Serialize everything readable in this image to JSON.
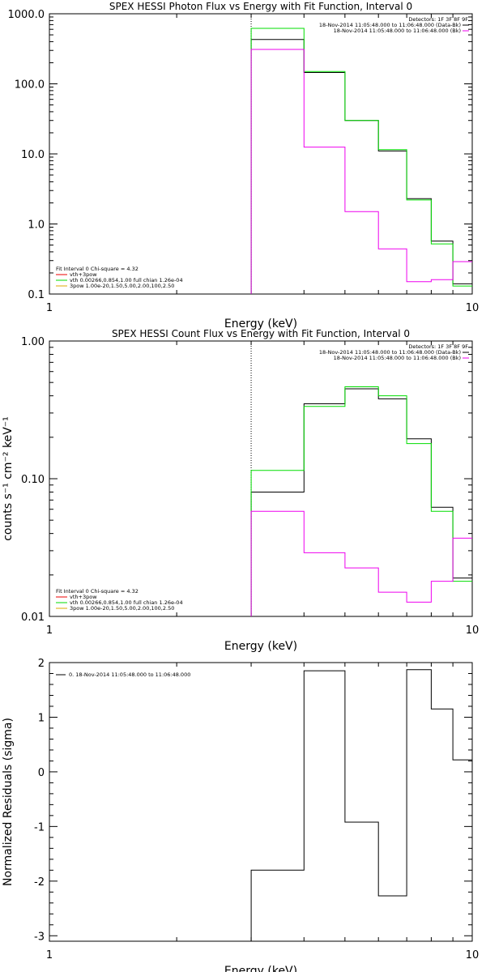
{
  "chart_data": [
    {
      "type": "line",
      "title": "SPEX HESSI Photon Flux vs Energy with Fit Function, Interval 0",
      "xlabel": "Energy (keV)",
      "ylabel": "",
      "xlog": true,
      "ylog": true,
      "xlim": [
        1,
        10
      ],
      "ylim": [
        0.1,
        1000
      ],
      "x_ticks": [
        {
          "v": 1,
          "label": "1"
        },
        {
          "v": 10,
          "label": "10"
        }
      ],
      "y_ticks": [
        {
          "v": 1000,
          "label": "1000.0"
        },
        {
          "v": 100,
          "label": "100.0"
        },
        {
          "v": 10,
          "label": "10.0"
        },
        {
          "v": 1,
          "label": "1.0"
        },
        {
          "v": 0.1,
          "label": "0.1"
        }
      ],
      "vline_x": 3.0,
      "bin_edges": [
        3.0,
        4.0,
        5.0,
        6.0,
        7.0,
        8.0,
        9.0,
        10.0
      ],
      "series": [
        {
          "color": "#000000",
          "values": [
            430,
            145,
            30,
            11,
            2.3,
            0.57,
            0.14
          ]
        },
        {
          "color": "#00dd00",
          "values": [
            620,
            150,
            30,
            11.5,
            2.2,
            0.52,
            0.13
          ]
        },
        {
          "color": "#ee00ee",
          "values": [
            310,
            12.5,
            1.5,
            0.44,
            0.15,
            0.16,
            0.29
          ]
        }
      ],
      "legend_tr": {
        "color": "#000000",
        "lines": [
          {
            "text": "Detectors: 1F 3F 8F 9F",
            "mark": ""
          },
          {
            "text": "18-Nov-2014 11:05:48.000 to 11:06:48.000 (Data-Bk)",
            "mark": "#000000"
          },
          {
            "text": "18-Nov-2014 11:05:48.000 to 11:06:48.000 (Bk)",
            "mark": "#ee00ee"
          }
        ]
      },
      "legend_bl": [
        {
          "text": "Fit Interval  0   Chi-square = 4.32",
          "color": ""
        },
        {
          "text": "vth+3pow",
          "color": "#ee0000"
        },
        {
          "text": "vth 0.00266,0.854,1.00  full chian 1.26e-04",
          "color": "#00dd00"
        },
        {
          "text": "3pow 1.00e-20,1.50,5.00,2.00,100,2.50",
          "color": "#ddaa00"
        }
      ]
    },
    {
      "type": "line",
      "title": "SPEX HESSI Count Flux vs Energy with Fit Function, Interval 0",
      "xlabel": "Energy (keV)",
      "ylabel": "counts s⁻¹ cm⁻² keV⁻¹",
      "xlog": true,
      "ylog": true,
      "xlim": [
        1,
        10
      ],
      "ylim": [
        0.01,
        1.0
      ],
      "x_ticks": [
        {
          "v": 1,
          "label": "1"
        },
        {
          "v": 10,
          "label": "10"
        }
      ],
      "y_ticks": [
        {
          "v": 1,
          "label": "1.00"
        },
        {
          "v": 0.1,
          "label": "0.10"
        },
        {
          "v": 0.01,
          "label": "0.01"
        }
      ],
      "vline_x": 3.0,
      "bin_edges": [
        3.0,
        4.0,
        5.0,
        6.0,
        7.0,
        8.0,
        9.0,
        10.0
      ],
      "series": [
        {
          "color": "#000000",
          "values": [
            0.08,
            0.35,
            0.45,
            0.38,
            0.195,
            0.062,
            0.019
          ]
        },
        {
          "color": "#00dd00",
          "values": [
            0.115,
            0.335,
            0.465,
            0.4,
            0.18,
            0.058,
            0.018
          ]
        },
        {
          "color": "#ee00ee",
          "values": [
            0.058,
            0.029,
            0.0225,
            0.015,
            0.0127,
            0.018,
            0.037
          ]
        }
      ],
      "legend_tr": {
        "color": "#000000",
        "lines": [
          {
            "text": "Detectors: 1F 3F 8F 9F",
            "mark": ""
          },
          {
            "text": "18-Nov-2014 11:05:48.000 to 11:06:48.000 (Data-Bk)",
            "mark": "#000000"
          },
          {
            "text": "18-Nov-2014 11:05:48.000 to 11:06:48.000 (Bk)",
            "mark": "#ee00ee"
          }
        ]
      },
      "legend_bl": [
        {
          "text": "Fit Interval  0   Chi-square = 4.32",
          "color": ""
        },
        {
          "text": "vth+3pow",
          "color": "#ee0000"
        },
        {
          "text": "vth 0.00266,0.854,1.00  full chian 1.26e-04",
          "color": "#00dd00"
        },
        {
          "text": "3pow 1.00e-20,1.50,5.00,2.00,100,2.50",
          "color": "#ddaa00"
        }
      ]
    },
    {
      "type": "line",
      "title": "",
      "xlabel": "Energy (keV)",
      "ylabel": "Normalized Residuals (sigma)",
      "xlog": true,
      "ylog": false,
      "xlim": [
        1,
        10
      ],
      "ylim": [
        -3.1,
        2.0
      ],
      "x_ticks": [
        {
          "v": 1,
          "label": "1"
        },
        {
          "v": 10,
          "label": "10"
        }
      ],
      "y_ticks": [
        {
          "v": 2,
          "label": "2"
        },
        {
          "v": 1,
          "label": "1"
        },
        {
          "v": 0,
          "label": "0"
        },
        {
          "v": -1,
          "label": "-1"
        },
        {
          "v": -2,
          "label": "-2"
        },
        {
          "v": -3,
          "label": "-3"
        }
      ],
      "vline_x": null,
      "bin_edges": [
        3.0,
        4.0,
        5.0,
        6.0,
        7.0,
        8.0,
        9.0,
        10.0
      ],
      "series": [
        {
          "color": "#000000",
          "values": [
            -1.8,
            1.85,
            -0.92,
            -2.27,
            1.87,
            1.15,
            0.22
          ]
        }
      ],
      "legend_tl": [
        {
          "text": "0. 18-Nov-2014 11:05:48.000 to 11:06:48.000",
          "color": "#000000"
        }
      ]
    }
  ]
}
